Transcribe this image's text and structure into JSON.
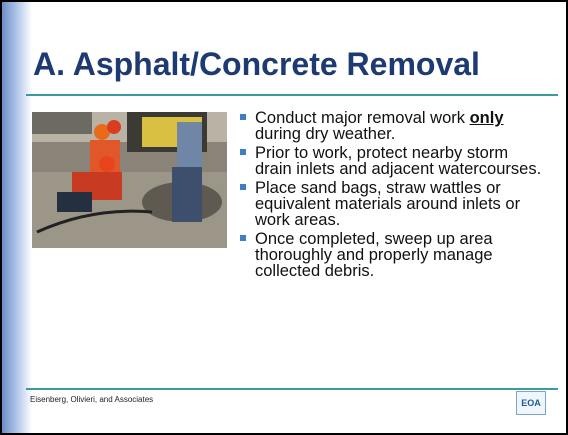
{
  "slide": {
    "title": "A. Asphalt/Concrete Removal",
    "bullets": [
      {
        "parts": [
          "Conduct major removal work",
          "only",
          "during dry weather."
        ]
      },
      "Prior to work, protect nearby storm drain inlets and adjacent watercourses.",
      "Place sand bags, straw wattles or equivalent materials around inlets or work areas.",
      "Once completed, sweep up area thoroughly and properly manage collected debris."
    ],
    "footer": "Eisenberg, Olivieri, and Associates",
    "logo": "EOA"
  }
}
